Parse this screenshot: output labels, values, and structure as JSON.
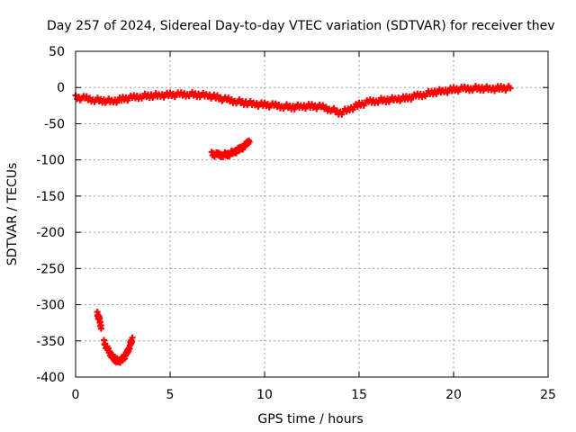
{
  "chart_data": {
    "type": "scatter",
    "title": "Day 257 of 2024, Sidereal Day-to-day VTEC variation (SDTVAR) for receiver thev",
    "xlabel": "GPS time / hours",
    "ylabel": "SDTVAR / TECUs",
    "xlim": [
      0,
      25
    ],
    "ylim": [
      -400,
      50
    ],
    "xticks": [
      "0",
      "5",
      "10",
      "15",
      "20",
      "25"
    ],
    "yticks": [
      "50",
      "0",
      "-50",
      "-100",
      "-150",
      "-200",
      "-250",
      "-300",
      "-350",
      "-400"
    ],
    "grid": true,
    "legend": "none",
    "colors": {
      "series": "#ff0000",
      "grid": "#a0a0a0",
      "axis": "#000000"
    },
    "series": [
      {
        "name": "main-trace",
        "x": [
          0.0,
          0.5,
          1.0,
          1.5,
          2.0,
          2.5,
          3.0,
          3.5,
          4.0,
          4.5,
          5.0,
          5.5,
          6.0,
          6.5,
          7.0,
          7.5,
          8.0,
          8.5,
          9.0,
          9.5,
          10.0,
          10.5,
          11.0,
          11.5,
          12.0,
          12.5,
          13.0,
          13.5,
          14.0,
          14.5,
          15.0,
          15.5,
          16.0,
          16.5,
          17.0,
          17.5,
          18.0,
          18.5,
          19.0,
          19.5,
          20.0,
          20.5,
          21.0,
          21.5,
          22.0,
          22.5,
          23.0
        ],
        "y": [
          -14,
          -15,
          -17,
          -18,
          -19,
          -16,
          -14,
          -12,
          -11,
          -11,
          -10,
          -10,
          -9,
          -10,
          -11,
          -14,
          -17,
          -19,
          -21,
          -23,
          -24,
          -25,
          -26,
          -27,
          -26,
          -26,
          -27,
          -30,
          -35,
          -30,
          -24,
          -20,
          -18,
          -17,
          -16,
          -15,
          -12,
          -9,
          -6,
          -5,
          -3,
          -2,
          -1,
          -1,
          -2,
          -1,
          -1
        ]
      },
      {
        "name": "segment-a",
        "x": [
          7.2,
          7.5,
          7.8,
          8.1,
          8.4,
          8.7,
          9.0,
          9.2
        ],
        "y": [
          -92,
          -93,
          -93,
          -92,
          -89,
          -85,
          -80,
          -72
        ]
      },
      {
        "name": "segment-b",
        "x": [
          1.15,
          1.25,
          1.35
        ],
        "y": [
          -313,
          -320,
          -330
        ]
      },
      {
        "name": "segment-c",
        "x": [
          1.5,
          1.7,
          1.9,
          2.1,
          2.3,
          2.5,
          2.7,
          2.85,
          3.0
        ],
        "y": [
          -352,
          -362,
          -370,
          -376,
          -378,
          -375,
          -368,
          -358,
          -347
        ]
      }
    ]
  }
}
